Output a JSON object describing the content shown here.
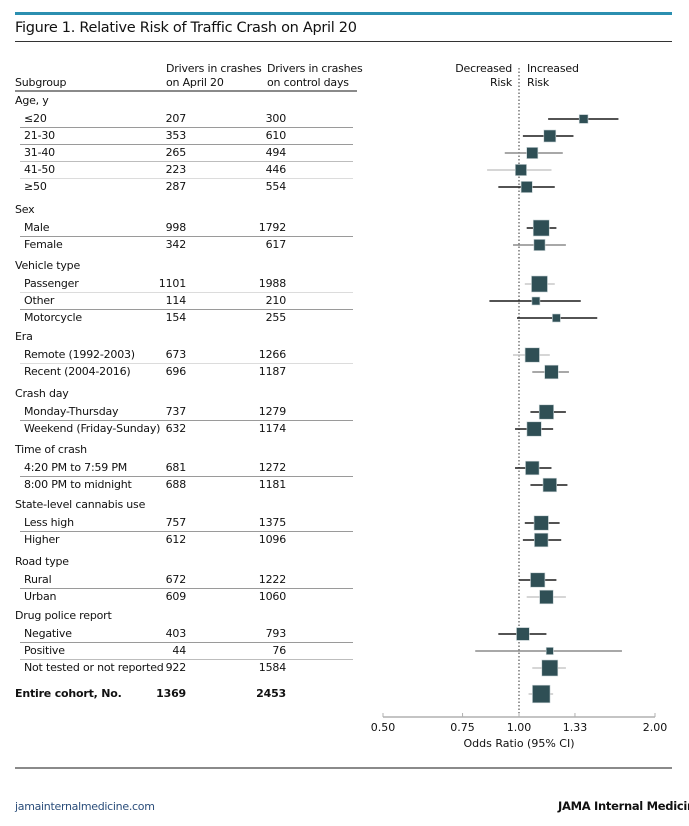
{
  "title": "Figure 1. Relative Risk of Traffic Crash on April 20",
  "headers": {
    "subgroup": "Subgroup",
    "col1_line1": "Drivers in crashes",
    "col1_line2": "on April 20",
    "col2_line1": "Drivers in crashes",
    "col2_line2": "on control days",
    "decreased_line1": "Decreased",
    "decreased_line2": "Risk",
    "increased_line1": "Increased",
    "increased_line2": "Risk"
  },
  "footer": {
    "website": "jamainternalmedicine.com",
    "journal": "JAMA Internal Medicin"
  },
  "colors": {
    "accent_rule": "#2b8fb0",
    "marker": "#2f4f55",
    "ci_dark": "#1a1a1a",
    "ci_mid": "#8c8c8c",
    "ci_light": "#c8c8c8"
  },
  "chart_data": {
    "type": "forest",
    "title": "Figure 1. Relative Risk of Traffic Crash on April 20",
    "xlabel": "Odds Ratio (95% CI)",
    "xscale": "log",
    "xlim": [
      0.5,
      2.0
    ],
    "xticks": [
      0.5,
      0.75,
      1.0,
      1.33,
      2.0
    ],
    "xtick_labels": [
      "0.50",
      "0.75",
      "1.00",
      "1.33",
      "2.00"
    ],
    "reference_line": 1.0,
    "groups": [
      {
        "name": "Age, y",
        "rows": [
          {
            "label": "≤20",
            "april20": "207",
            "control": "300",
            "or": 1.39,
            "lo": 1.16,
            "hi": 1.66,
            "size": 0.55,
            "shade": "dark"
          },
          {
            "label": "21-30",
            "april20": "353",
            "control": "610",
            "or": 1.17,
            "lo": 1.02,
            "hi": 1.32,
            "size": 0.75,
            "shade": "dark"
          },
          {
            "label": "31-40",
            "april20": "265",
            "control": "494",
            "or": 1.07,
            "lo": 0.93,
            "hi": 1.25,
            "size": 0.7,
            "shade": "mid"
          },
          {
            "label": "41-50",
            "april20": "223",
            "control": "446",
            "or": 1.01,
            "lo": 0.85,
            "hi": 1.18,
            "size": 0.7,
            "shade": "light"
          },
          {
            "label": "≥50",
            "april20": "287",
            "control": "554",
            "or": 1.04,
            "lo": 0.9,
            "hi": 1.2,
            "size": 0.7,
            "shade": "dark"
          }
        ]
      },
      {
        "name": "Sex",
        "rows": [
          {
            "label": "Male",
            "april20": "998",
            "control": "1792",
            "or": 1.12,
            "lo": 1.04,
            "hi": 1.21,
            "size": 1.0,
            "shade": "dark"
          },
          {
            "label": "Female",
            "april20": "342",
            "control": "617",
            "or": 1.11,
            "lo": 0.97,
            "hi": 1.27,
            "size": 0.7,
            "shade": "mid"
          }
        ]
      },
      {
        "name": "Vehicle type",
        "rows": [
          {
            "label": "Passenger",
            "april20": "1101",
            "control": "1988",
            "or": 1.11,
            "lo": 1.03,
            "hi": 1.2,
            "size": 1.0,
            "shade": "light"
          },
          {
            "label": "Other",
            "april20": "114",
            "control": "210",
            "or": 1.09,
            "lo": 0.86,
            "hi": 1.37,
            "size": 0.5,
            "shade": "dark"
          },
          {
            "label": "Motorcycle",
            "april20": "154",
            "control": "255",
            "or": 1.21,
            "lo": 0.99,
            "hi": 1.49,
            "size": 0.5,
            "shade": "dark"
          }
        ]
      },
      {
        "name": "Era",
        "rows": [
          {
            "label": "Remote (1992-2003)",
            "april20": "673",
            "control": "1266",
            "or": 1.07,
            "lo": 0.97,
            "hi": 1.17,
            "size": 0.9,
            "shade": "light"
          },
          {
            "label": "Recent (2004-2016)",
            "april20": "696",
            "control": "1187",
            "or": 1.18,
            "lo": 1.07,
            "hi": 1.29,
            "size": 0.85,
            "shade": "mid"
          }
        ]
      },
      {
        "name": "Crash day",
        "rows": [
          {
            "label": "Monday-Thursday",
            "april20": "737",
            "control": "1279",
            "or": 1.15,
            "lo": 1.06,
            "hi": 1.27,
            "size": 0.9,
            "shade": "dark"
          },
          {
            "label": "Weekend (Friday-Sunday)",
            "april20": "632",
            "control": "1174",
            "or": 1.08,
            "lo": 0.98,
            "hi": 1.19,
            "size": 0.9,
            "shade": "dark"
          }
        ]
      },
      {
        "name": "Time of crash",
        "rows": [
          {
            "label": "4:20 PM to 7:59 PM",
            "april20": "681",
            "control": "1272",
            "or": 1.07,
            "lo": 0.98,
            "hi": 1.18,
            "size": 0.85,
            "shade": "dark"
          },
          {
            "label": "8:00 PM to midnight",
            "april20": "688",
            "control": "1181",
            "or": 1.17,
            "lo": 1.06,
            "hi": 1.28,
            "size": 0.85,
            "shade": "dark"
          }
        ]
      },
      {
        "name": "State-level cannabis use",
        "rows": [
          {
            "label": "Less high",
            "april20": "757",
            "control": "1375",
            "or": 1.12,
            "lo": 1.03,
            "hi": 1.23,
            "size": 0.9,
            "shade": "dark"
          },
          {
            "label": "Higher",
            "april20": "612",
            "control": "1096",
            "or": 1.12,
            "lo": 1.02,
            "hi": 1.24,
            "size": 0.85,
            "shade": "dark"
          }
        ]
      },
      {
        "name": "Road type",
        "rows": [
          {
            "label": "Rural",
            "april20": "672",
            "control": "1222",
            "or": 1.1,
            "lo": 1.0,
            "hi": 1.21,
            "size": 0.9,
            "shade": "dark"
          },
          {
            "label": "Urban",
            "april20": "609",
            "control": "1060",
            "or": 1.15,
            "lo": 1.04,
            "hi": 1.27,
            "size": 0.85,
            "shade": "light"
          }
        ]
      },
      {
        "name": "Drug police report",
        "rows": [
          {
            "label": "Negative",
            "april20": "403",
            "control": "793",
            "or": 1.02,
            "lo": 0.9,
            "hi": 1.15,
            "size": 0.8,
            "shade": "dark"
          },
          {
            "label": "Positive",
            "april20": "44",
            "control": "76",
            "or": 1.17,
            "lo": 0.8,
            "hi": 1.69,
            "size": 0.45,
            "shade": "mid"
          },
          {
            "label": "Not tested or not reported",
            "april20": "922",
            "control": "1584",
            "or": 1.17,
            "lo": 1.07,
            "hi": 1.27,
            "size": 1.0,
            "shade": "light"
          }
        ]
      }
    ],
    "overall": {
      "label": "Entire cohort, No.",
      "april20": "1369",
      "control": "2453",
      "or": 1.12,
      "lo": 1.05,
      "hi": 1.19,
      "size": 1.1,
      "shade": "light"
    }
  }
}
